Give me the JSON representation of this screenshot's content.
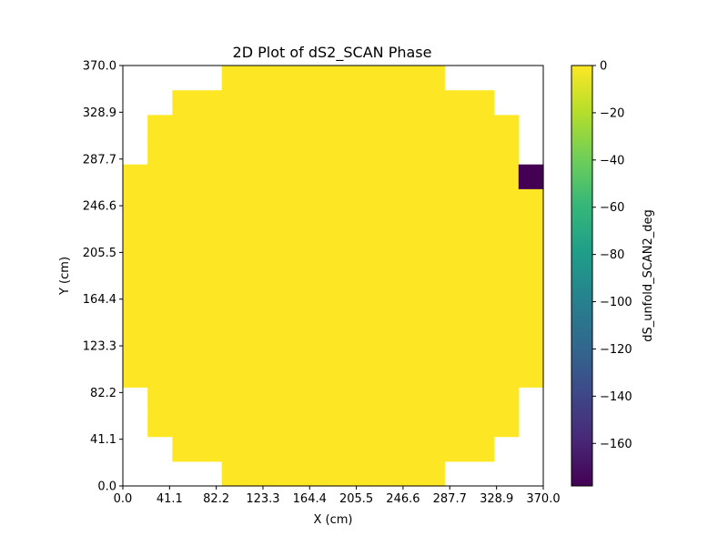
{
  "chart_data": {
    "type": "heatmap",
    "title": "2D Plot of dS2_SCAN Phase",
    "xlabel": "X (cm)",
    "ylabel": "Y (cm)",
    "xlim": [
      0.0,
      370.0
    ],
    "ylim": [
      0.0,
      370.0
    ],
    "xticks": [
      "0.0",
      "41.1",
      "82.2",
      "123.3",
      "164.4",
      "205.5",
      "246.6",
      "287.7",
      "328.9",
      "370.0"
    ],
    "yticks": [
      "0.0",
      "41.1",
      "82.2",
      "123.3",
      "164.4",
      "205.5",
      "246.6",
      "287.7",
      "328.9",
      "370.0"
    ],
    "grid": false,
    "grid_size": [
      17,
      17
    ],
    "rows_top_to_bottom": [
      {
        "from": 4,
        "to": 12
      },
      {
        "from": 2,
        "to": 14
      },
      {
        "from": 1,
        "to": 15
      },
      {
        "from": 1,
        "to": 15
      },
      {
        "from": 0,
        "to": 16
      },
      {
        "from": 0,
        "to": 16
      },
      {
        "from": 0,
        "to": 16
      },
      {
        "from": 0,
        "to": 16
      },
      {
        "from": 0,
        "to": 16
      },
      {
        "from": 0,
        "to": 16
      },
      {
        "from": 0,
        "to": 16
      },
      {
        "from": 0,
        "to": 16
      },
      {
        "from": 0,
        "to": 16
      },
      {
        "from": 1,
        "to": 15
      },
      {
        "from": 1,
        "to": 15
      },
      {
        "from": 2,
        "to": 14
      },
      {
        "from": 4,
        "to": 12
      }
    ],
    "background_value": 0,
    "outliers": [
      {
        "row_from_top": 4,
        "col": 16,
        "value": -178
      }
    ],
    "colorbar": {
      "label": "dS_unfold_SCAN2_deg",
      "min": -178,
      "max": 0,
      "ticks": [
        "0",
        "−20",
        "−40",
        "−60",
        "−80",
        "−100",
        "−120",
        "−140",
        "−160"
      ],
      "tick_values": [
        0,
        -20,
        -40,
        -60,
        -80,
        -100,
        -120,
        -140,
        -160
      ],
      "colormap": "viridis",
      "colormap_stops": [
        "#440154",
        "#482878",
        "#3e4989",
        "#31688e",
        "#26828e",
        "#1f9e89",
        "#35b779",
        "#6ece58",
        "#b5de2b",
        "#fde725"
      ]
    }
  }
}
